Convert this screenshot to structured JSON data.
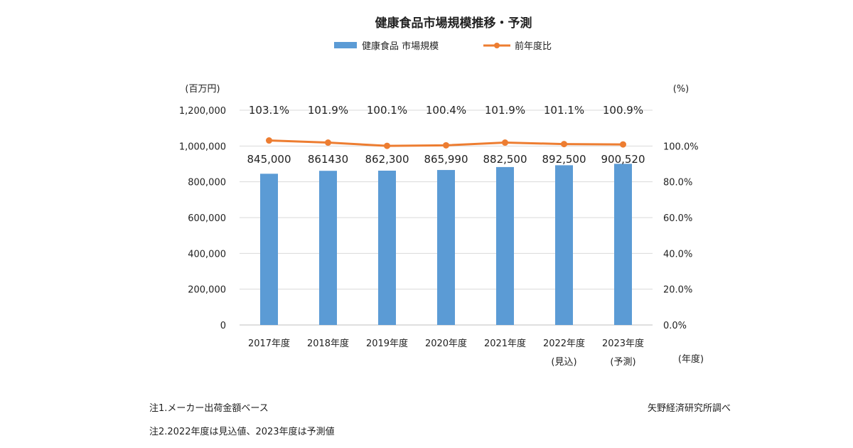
{
  "chart_data": {
    "type": "bar",
    "title": "健康食品市場規模推移・予測",
    "categories": [
      "2017年度",
      "2018年度",
      "2019年度",
      "2020年度",
      "2021年度",
      "2022年度",
      "2023年度"
    ],
    "category_sublabels": [
      "",
      "",
      "",
      "",
      "",
      "(見込)",
      "(予測)"
    ],
    "series": [
      {
        "name": "健康食品 市場規模",
        "type": "bar",
        "axis": "left",
        "color": "#5b9bd5",
        "values": [
          845000,
          861430,
          862300,
          865990,
          882500,
          892500,
          900520
        ],
        "value_labels": [
          "845,000",
          "861430",
          "862,300",
          "865,990",
          "882,500",
          "892,500",
          "900,520"
        ]
      },
      {
        "name": "前年度比",
        "type": "line",
        "axis": "right",
        "color": "#ed7d31",
        "marker": "circle",
        "values": [
          103.1,
          101.9,
          100.1,
          100.4,
          101.9,
          101.1,
          100.9
        ],
        "value_labels": [
          "103.1%",
          "101.9%",
          "100.1%",
          "100.4%",
          "101.9%",
          "101.1%",
          "100.9%"
        ]
      }
    ],
    "y_left": {
      "unit_label": "(百万円)",
      "lim": [
        0,
        1200000
      ],
      "ticks": [
        0,
        200000,
        400000,
        600000,
        800000,
        1000000,
        1200000
      ],
      "tick_labels": [
        "0",
        "200,000",
        "400,000",
        "600,000",
        "800,000",
        "1,000,000",
        "1,200,000"
      ]
    },
    "y_right": {
      "unit_label": "(%)",
      "lim": [
        0,
        120
      ],
      "ticks": [
        0,
        20,
        40,
        60,
        80,
        100
      ],
      "tick_labels": [
        "0.0%",
        "20.0%",
        "40.0%",
        "60.0%",
        "80.0%",
        "100.0%"
      ]
    },
    "x_unit_label": "(年度)",
    "grid": true,
    "legend_position": "top-center"
  },
  "notes": {
    "note1": "注1.メーカー出荷金額ベース",
    "note2": "注2.2022年度は見込値、2023年度は予測値",
    "source": "矢野経済研究所調べ"
  }
}
